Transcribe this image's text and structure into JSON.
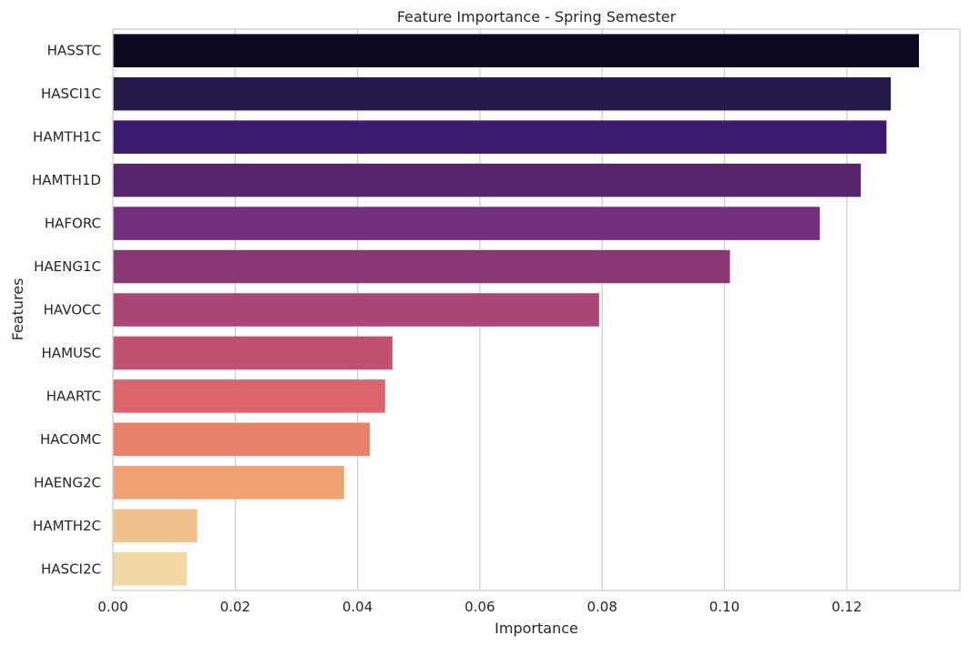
{
  "chart_data": {
    "type": "bar",
    "orientation": "horizontal",
    "title": "Feature Importance - Spring Semester",
    "xlabel": "Importance",
    "ylabel": "Features",
    "xlim": [
      0,
      0.1385
    ],
    "xticks": [
      "0.00",
      "0.02",
      "0.04",
      "0.06",
      "0.08",
      "0.10",
      "0.12"
    ],
    "grid": "vertical",
    "categories": [
      "HASSTC",
      "HASCI1C",
      "HAMTH1C",
      "HAMTH1D",
      "HAFORC",
      "HAENG1C",
      "HAVOCC",
      "HAMUSC",
      "HAARTC",
      "HACOMC",
      "HAENG2C",
      "HAMTH2C",
      "HASCI2C"
    ],
    "values": [
      0.1318,
      0.1272,
      0.1265,
      0.1223,
      0.1156,
      0.1009,
      0.0795,
      0.0457,
      0.0445,
      0.042,
      0.0378,
      0.0138,
      0.0121
    ],
    "colors": [
      "#0d0b23",
      "#271a4b",
      "#3d1b6f",
      "#58246e",
      "#71307a",
      "#8a3977",
      "#a84676",
      "#c1516f",
      "#da646b",
      "#e8816c",
      "#eda172",
      "#f0c08e",
      "#f3d7a5"
    ]
  }
}
